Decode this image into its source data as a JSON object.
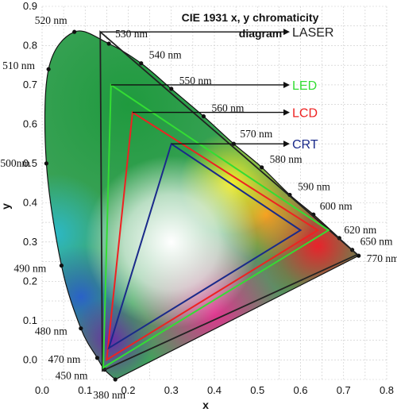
{
  "chart_data": {
    "type": "scatter",
    "title_lines": [
      "CIE 1931 x, y chromaticity",
      "diagram"
    ],
    "xlabel": "x",
    "ylabel": "y",
    "xlim": [
      0,
      0.8
    ],
    "ylim": [
      -0.05,
      0.9
    ],
    "grid": true,
    "x_ticks": [
      "0.0",
      "0.1",
      "0.2",
      "0.3",
      "0.4",
      "0.5",
      "0.6",
      "0.7",
      "0.8"
    ],
    "y_ticks": [
      "0.0",
      "0.1",
      "0.2",
      "0.3",
      "0.4",
      "0.5",
      "0.6",
      "0.7",
      "0.8",
      "0.9"
    ],
    "spectral_locus": [
      {
        "wl": 380,
        "x": 0.17,
        "y": -0.05
      },
      {
        "wl": 450,
        "x": 0.145,
        "y": -0.025
      },
      {
        "wl": 470,
        "x": 0.128,
        "y": 0.005
      },
      {
        "wl": 480,
        "x": 0.09,
        "y": 0.08
      },
      {
        "wl": 490,
        "x": 0.045,
        "y": 0.24
      },
      {
        "wl": 500,
        "x": 0.01,
        "y": 0.5
      },
      {
        "wl": 510,
        "x": 0.015,
        "y": 0.74
      },
      {
        "wl": 520,
        "x": 0.075,
        "y": 0.835
      },
      {
        "wl": 530,
        "x": 0.155,
        "y": 0.805
      },
      {
        "wl": 540,
        "x": 0.23,
        "y": 0.755
      },
      {
        "wl": 550,
        "x": 0.3,
        "y": 0.69
      },
      {
        "wl": 560,
        "x": 0.375,
        "y": 0.62
      },
      {
        "wl": 570,
        "x": 0.445,
        "y": 0.55
      },
      {
        "wl": 580,
        "x": 0.51,
        "y": 0.49
      },
      {
        "wl": 590,
        "x": 0.575,
        "y": 0.42
      },
      {
        "wl": 600,
        "x": 0.63,
        "y": 0.37
      },
      {
        "wl": 620,
        "x": 0.69,
        "y": 0.31
      },
      {
        "wl": 650,
        "x": 0.72,
        "y": 0.28
      },
      {
        "wl": 770,
        "x": 0.735,
        "y": 0.265
      }
    ],
    "wavelength_labels": [
      {
        "text": "380 nm",
        "wl": 380
      },
      {
        "text": "450 nm",
        "wl": 450
      },
      {
        "text": "470 nm",
        "wl": 470
      },
      {
        "text": "480 nm",
        "wl": 480
      },
      {
        "text": "490 nm",
        "wl": 490
      },
      {
        "text": "500nm",
        "wl": 500
      },
      {
        "text": "510 nm",
        "wl": 510
      },
      {
        "text": "520 nm",
        "wl": 520
      },
      {
        "text": "530 nm",
        "wl": 530
      },
      {
        "text": "540 nm",
        "wl": 540
      },
      {
        "text": "550 nm",
        "wl": 550
      },
      {
        "text": "560 nm",
        "wl": 560
      },
      {
        "text": "570 nm",
        "wl": 570
      },
      {
        "text": "580 nm",
        "wl": 580
      },
      {
        "text": "590 nm",
        "wl": 590
      },
      {
        "text": "600 nm",
        "wl": 600
      },
      {
        "text": "620 nm",
        "wl": 620
      },
      {
        "text": "650 nm",
        "wl": 650
      },
      {
        "text": "770 nm",
        "wl": 770
      }
    ],
    "gamuts": [
      {
        "name": "LASER",
        "color": "#222222",
        "points": [
          [
            0.135,
            0.835
          ],
          [
            0.732,
            0.268
          ],
          [
            0.14,
            -0.028
          ]
        ]
      },
      {
        "name": "LED",
        "color": "#33dd33",
        "points": [
          [
            0.16,
            0.7
          ],
          [
            0.665,
            0.33
          ],
          [
            0.142,
            -0.02
          ]
        ]
      },
      {
        "name": "LCD",
        "color": "#ee2222",
        "points": [
          [
            0.21,
            0.63
          ],
          [
            0.64,
            0.33
          ],
          [
            0.15,
            0.0
          ]
        ]
      },
      {
        "name": "CRT",
        "color": "#1a2a8a",
        "points": [
          [
            0.3,
            0.55
          ],
          [
            0.6,
            0.33
          ],
          [
            0.155,
            0.03
          ]
        ]
      }
    ]
  }
}
